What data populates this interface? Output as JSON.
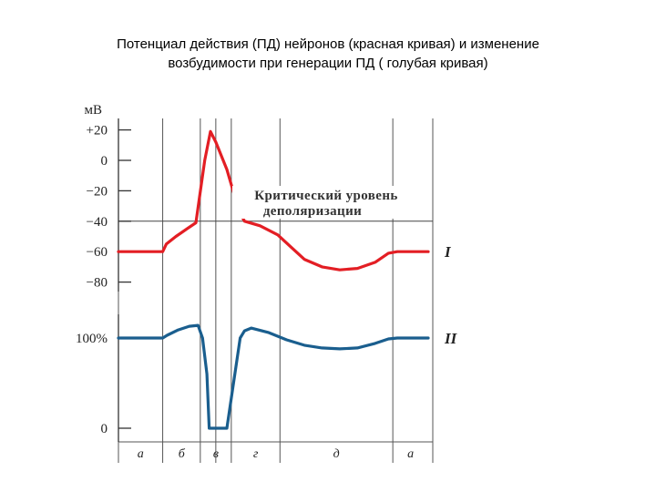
{
  "title": {
    "line1": "Потенциал действия (ПД) нейронов (красная кривая)  и изменение",
    "line2": "возбудимости при генерации  ПД ( голубая  кривая)"
  },
  "chart_data": {
    "type": "line",
    "ylabel": "мВ",
    "membrane_axis": {
      "ticks": [
        {
          "value": 20,
          "label": "+20"
        },
        {
          "value": 0,
          "label": "0"
        },
        {
          "value": -20,
          "label": "−20"
        },
        {
          "value": -40,
          "label": "−40"
        },
        {
          "value": -60,
          "label": "−60"
        },
        {
          "value": -80,
          "label": "−80"
        }
      ],
      "ylim": [
        -80,
        20
      ]
    },
    "excitability_axis": {
      "ticks": [
        {
          "value": 100,
          "label": "100%"
        },
        {
          "value": 0,
          "label": "0"
        }
      ]
    },
    "annotation": {
      "line1": "Критический уровень",
      "line2": "деполяризации",
      "threshold_mV": -40
    },
    "series": [
      {
        "name": "I",
        "color": "#e31e24",
        "points": [
          [
            0,
            -60
          ],
          [
            1.0,
            -60
          ],
          [
            1.08,
            -55
          ],
          [
            1.3,
            -50
          ],
          [
            1.55,
            -45
          ],
          [
            1.75,
            -41
          ],
          [
            1.95,
            0
          ],
          [
            2.08,
            19
          ],
          [
            2.2,
            12
          ],
          [
            2.45,
            -6
          ],
          [
            2.6,
            -21
          ],
          [
            2.75,
            -35
          ],
          [
            2.85,
            -40
          ],
          [
            3.2,
            -43
          ],
          [
            3.6,
            -49
          ],
          [
            3.9,
            -57
          ],
          [
            4.2,
            -65
          ],
          [
            4.6,
            -70
          ],
          [
            5.0,
            -72
          ],
          [
            5.4,
            -71
          ],
          [
            5.8,
            -67
          ],
          [
            6.1,
            -61
          ],
          [
            6.3,
            -60
          ],
          [
            7.0,
            -60
          ]
        ]
      },
      {
        "name": "II",
        "color": "#1a5e8e",
        "points": [
          [
            0,
            100
          ],
          [
            1.0,
            100
          ],
          [
            1.1,
            103
          ],
          [
            1.35,
            109
          ],
          [
            1.6,
            113
          ],
          [
            1.8,
            114
          ],
          [
            1.9,
            100
          ],
          [
            2.0,
            60
          ],
          [
            2.05,
            0
          ],
          [
            2.45,
            0
          ],
          [
            2.6,
            50
          ],
          [
            2.75,
            100
          ],
          [
            2.85,
            108
          ],
          [
            3.0,
            111
          ],
          [
            3.4,
            106
          ],
          [
            3.8,
            98
          ],
          [
            4.2,
            92
          ],
          [
            4.6,
            89
          ],
          [
            5.0,
            88
          ],
          [
            5.4,
            89
          ],
          [
            5.8,
            94
          ],
          [
            6.1,
            99
          ],
          [
            6.3,
            100
          ],
          [
            7.0,
            100
          ]
        ]
      }
    ],
    "phases": [
      {
        "label": "а",
        "start": 0,
        "end": 1.0
      },
      {
        "label": "б",
        "start": 1.0,
        "end": 1.85
      },
      {
        "label": "в",
        "start": 1.85,
        "end": 2.55
      },
      {
        "label": "г",
        "start": 2.55,
        "end": 3.65
      },
      {
        "label": "д",
        "start": 3.65,
        "end": 6.2
      },
      {
        "label": "а",
        "start": 6.2,
        "end": 7.0
      }
    ],
    "phase_boundaries": [
      1.0,
      1.85,
      2.2,
      2.55,
      3.65,
      6.2
    ]
  }
}
